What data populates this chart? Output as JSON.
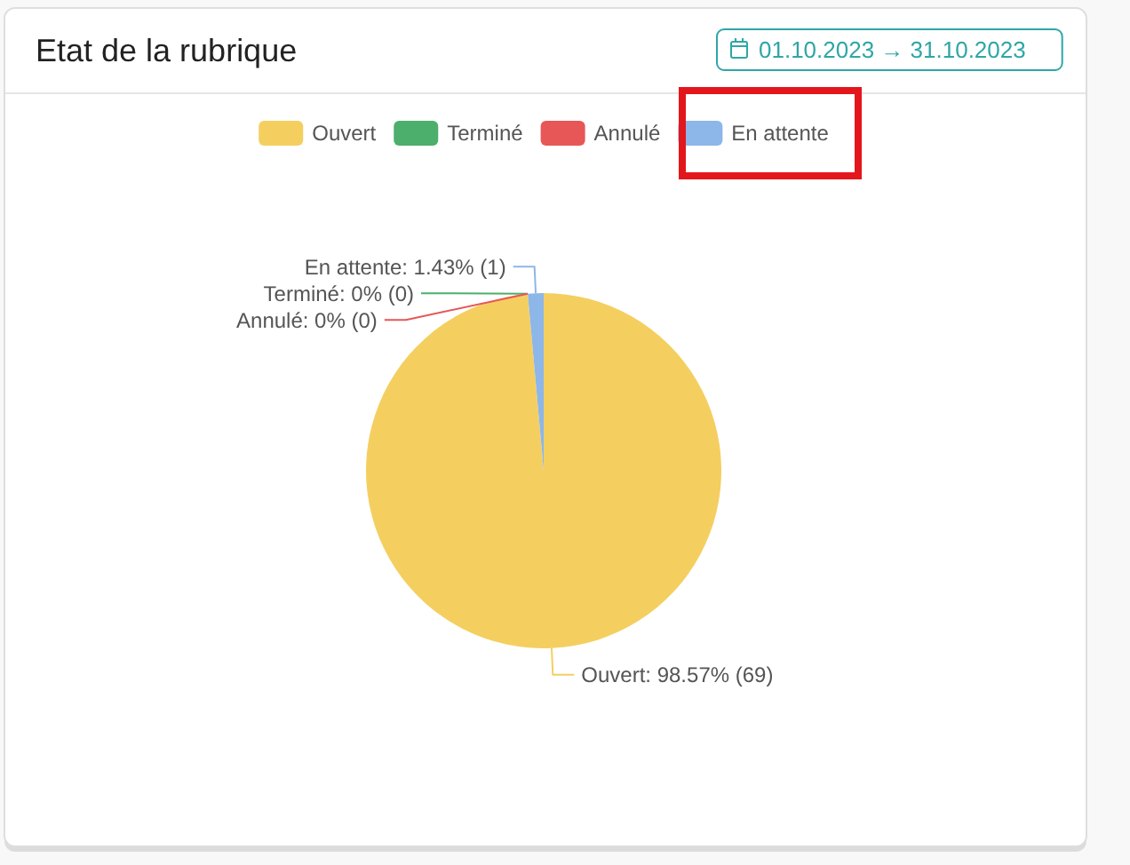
{
  "chart_data": {
    "type": "pie",
    "title": "Etat de la rubrique",
    "annotations": [
      "01.10.2023 → 31.10.2023"
    ],
    "categories": [
      "Ouvert",
      "Terminé",
      "Annulé",
      "En attente"
    ],
    "values": [
      69,
      0,
      0,
      1
    ],
    "colors": [
      "#f4cf60",
      "#4caf6c",
      "#e75757",
      "#8db6e9"
    ],
    "value_labels": [
      "Ouvert: 98.57% (69)",
      "Terminé: 0% (0)",
      "Annulé: 0% (0)",
      "En attente: 1.43% (1)"
    ],
    "legend": "top"
  }
}
